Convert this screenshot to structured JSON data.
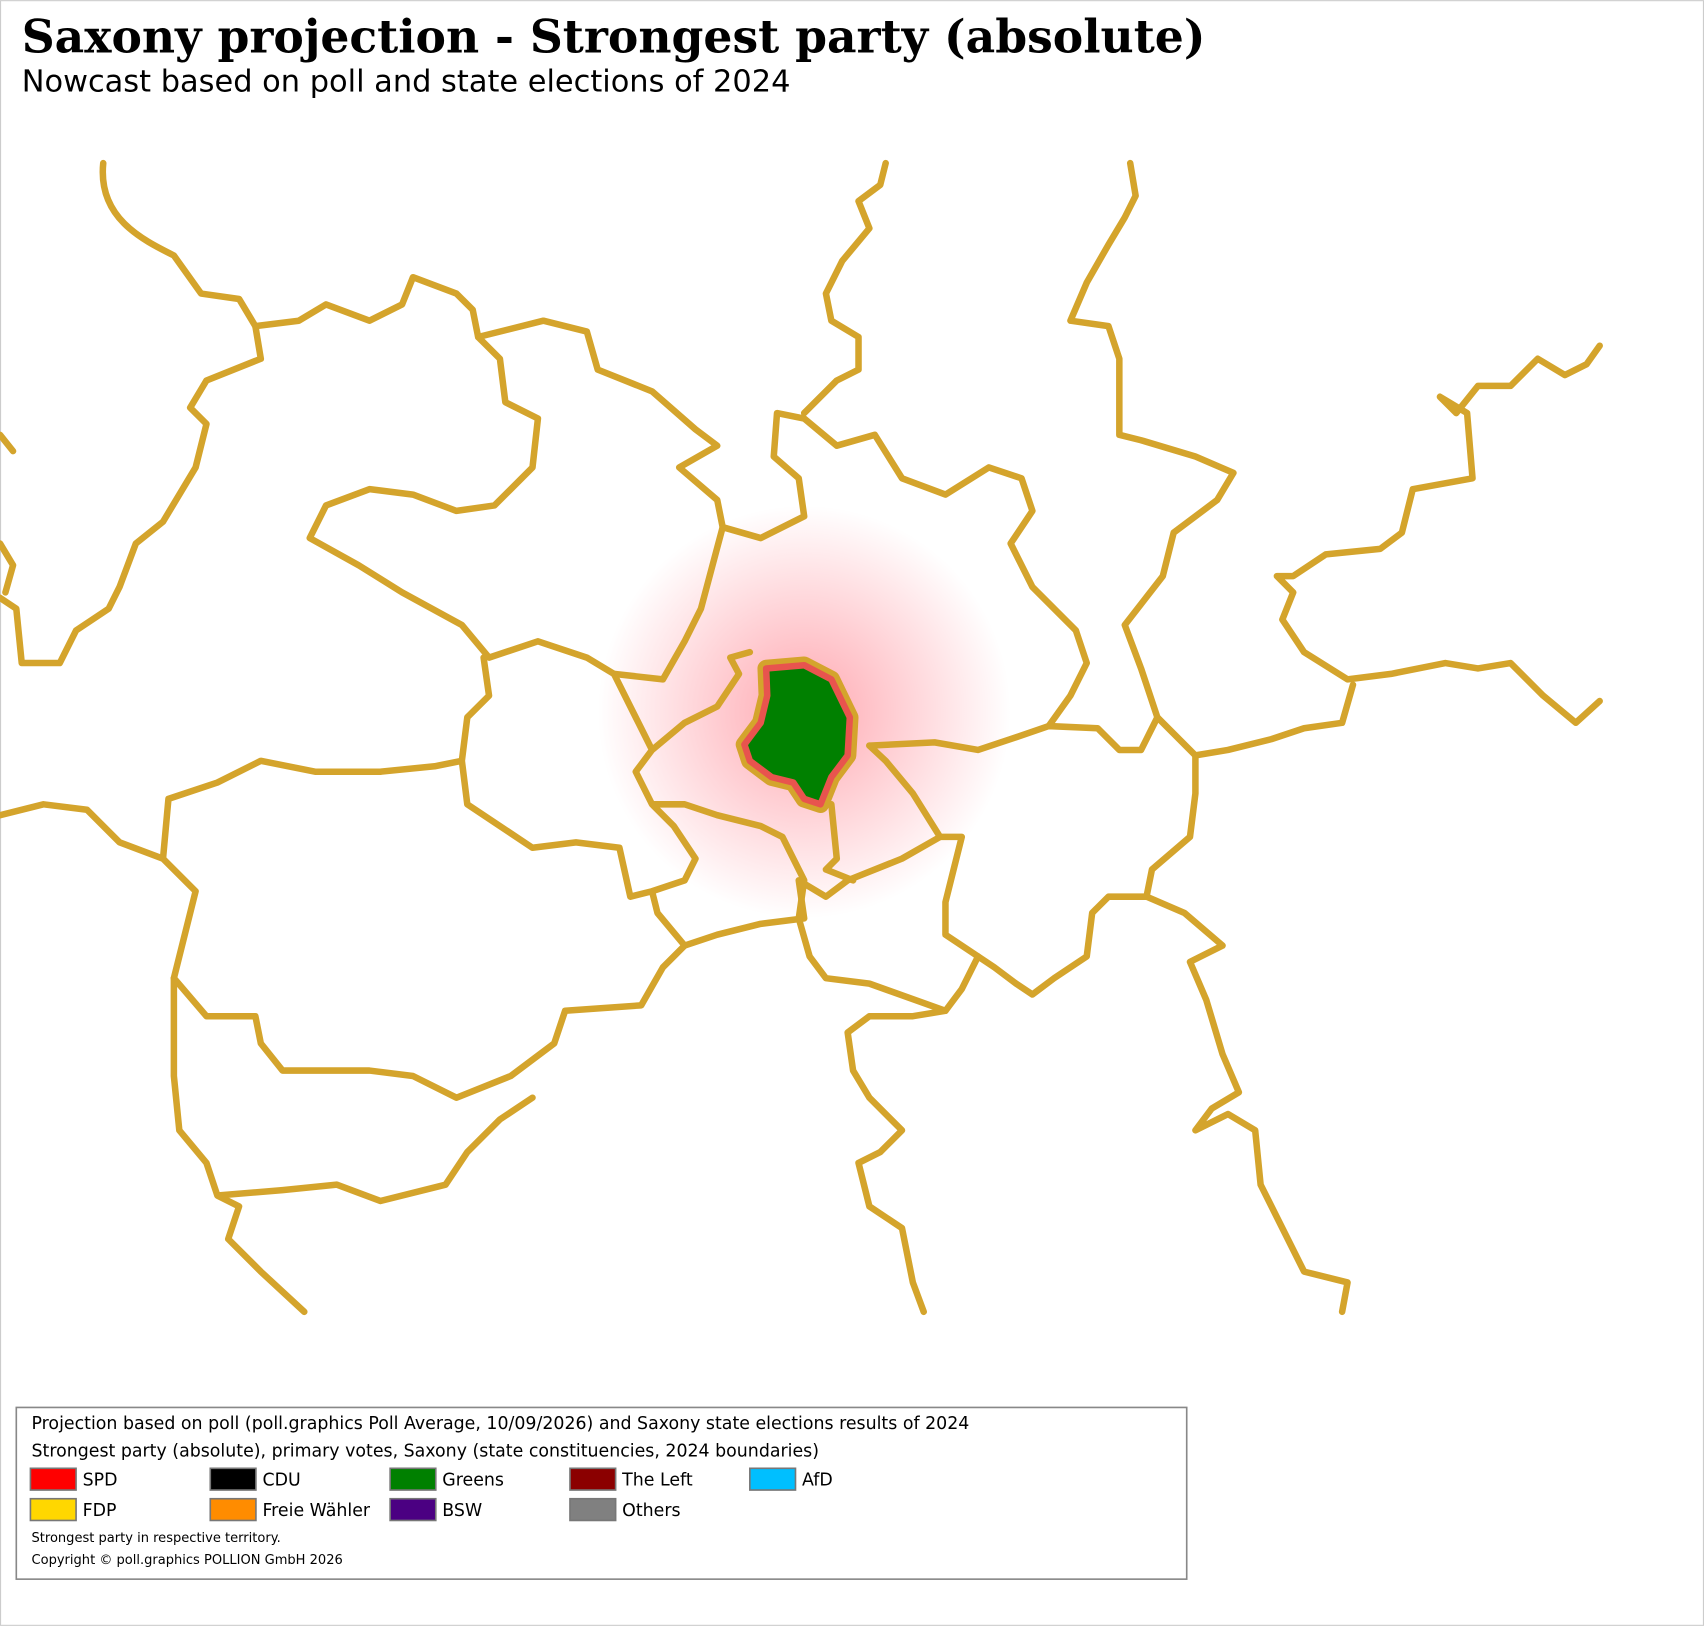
{
  "header": {
    "title": "Saxony projection - Strongest party (absolute)",
    "subtitle": "Nowcast based on poll and state elections of 2024"
  },
  "legend": {
    "lines": [
      "Projection based on poll (poll.graphics Poll Average, 10/09/2026) and Saxony state elections results of 2024",
      "Strongest party (absolute), primary votes, Saxony (state constituencies, 2024 boundaries)"
    ],
    "items": [
      {
        "name": "SPD",
        "color": "#ff0000"
      },
      {
        "name": "CDU",
        "color": "#000000"
      },
      {
        "name": "Greens",
        "color": "#008000"
      },
      {
        "name": "The Left",
        "color": "#8b0000"
      },
      {
        "name": "AfD",
        "color": "#00bfff"
      },
      {
        "name": "FDP",
        "color": "#ffd700"
      },
      {
        "name": "Freie Wähler",
        "color": "#ff8c00"
      },
      {
        "name": "BSW",
        "color": "#4b0082"
      },
      {
        "name": "Others",
        "color": "#808080"
      }
    ],
    "notes": [
      "Strongest party in respective territory.",
      "Copyright © poll.graphics POLLION GmbH 2026"
    ]
  }
}
